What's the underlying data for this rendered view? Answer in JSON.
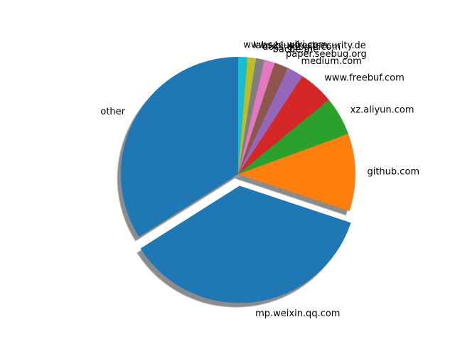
{
  "chart_data": {
    "type": "pie",
    "title": "",
    "start_angle_deg": 90,
    "direction": "counterclockwise",
    "shadow": true,
    "exploded": [
      "mp.weixin.qq.com"
    ],
    "slices": [
      {
        "label": "other",
        "value": 35.0,
        "color": "#1f77b4"
      },
      {
        "label": "mp.weixin.qq.com",
        "value": 37.0,
        "color": "#1f77b4"
      },
      {
        "label": "github.com",
        "value": 11.0,
        "color": "#ff7f0e"
      },
      {
        "label": "xz.aliyun.com",
        "value": 5.5,
        "color": "#2ca02c"
      },
      {
        "label": "www.freebuf.com",
        "value": 5.0,
        "color": "#d62728"
      },
      {
        "label": "medium.com",
        "value": 2.3,
        "color": "#9467bd"
      },
      {
        "label": "paper.seebug.org",
        "value": 2.0,
        "color": "#8c564b"
      },
      {
        "label": "bacde.me",
        "value": 1.5,
        "color": "#e377c2"
      },
      {
        "label": "docs.google.com",
        "value": 1.2,
        "color": "#7f7f7f"
      },
      {
        "label": "labs.bluefrostsecurity.de",
        "value": 1.2,
        "color": "#bcbd22"
      },
      {
        "label": "www.sec-wiki.com",
        "value": 1.3,
        "color": "#17becf"
      }
    ]
  }
}
